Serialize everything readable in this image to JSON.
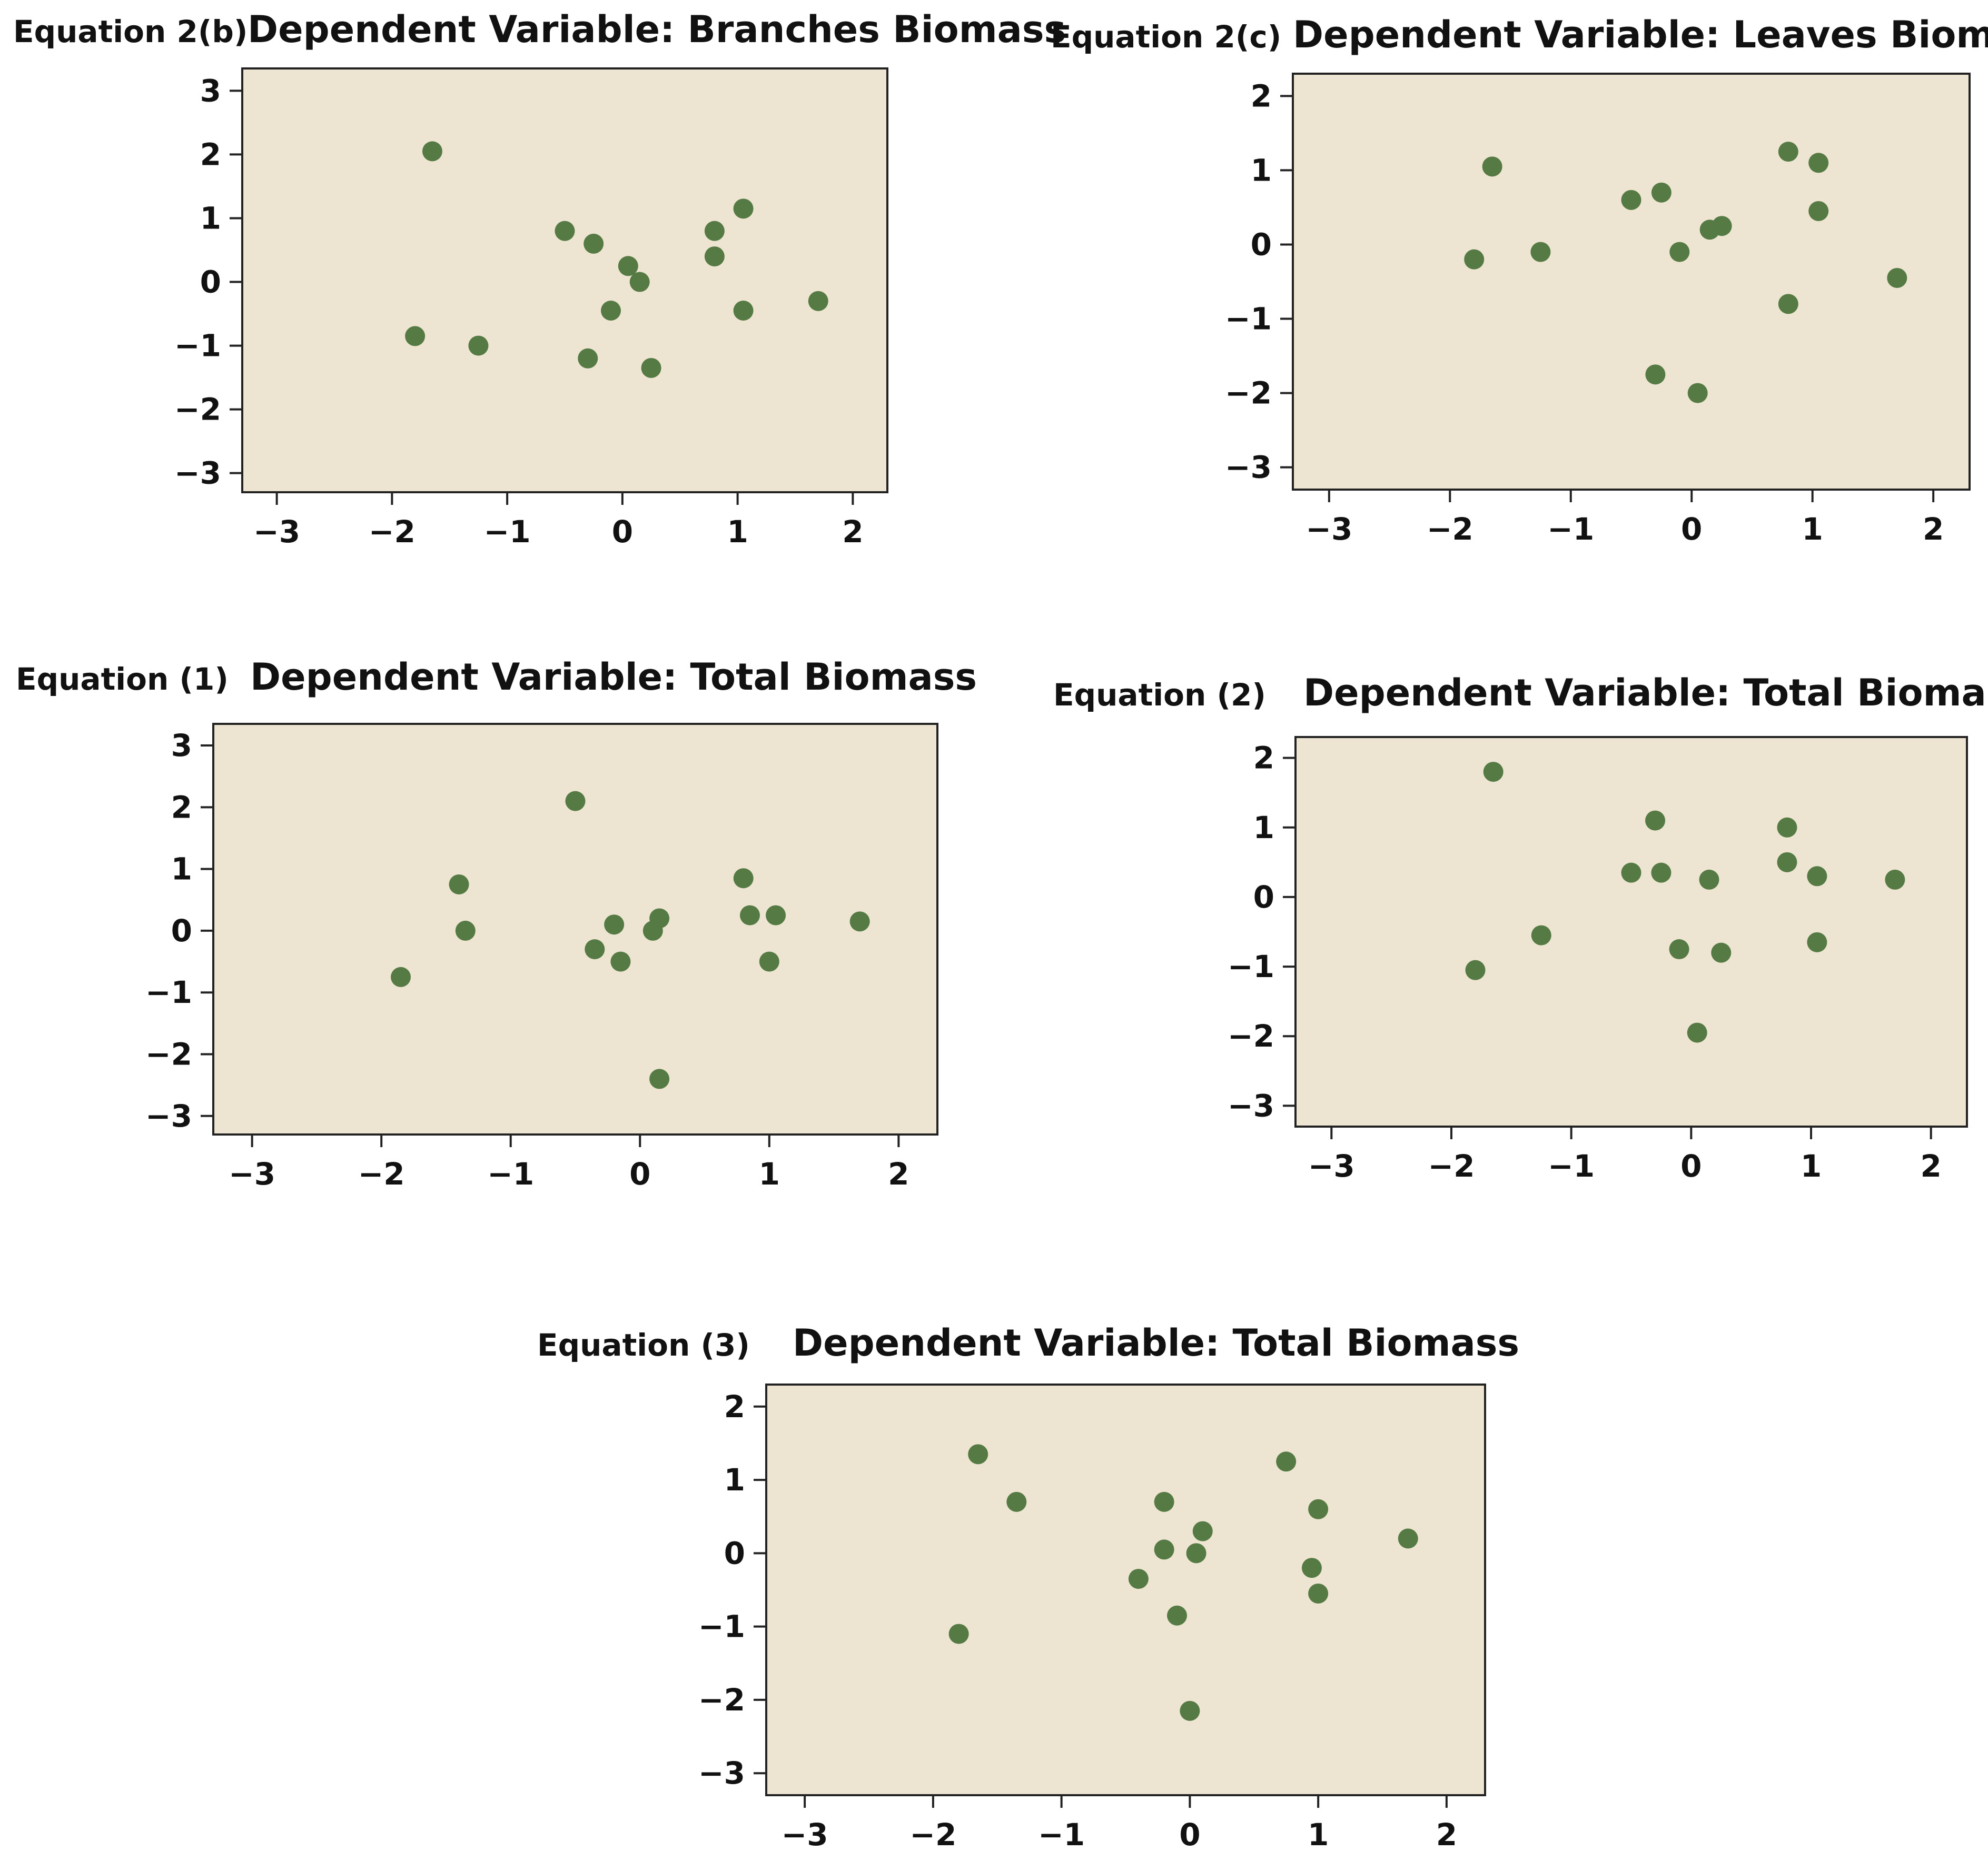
{
  "chart_data": [
    {
      "type": "scatter",
      "equation_label": "Equation 2(b)",
      "title": "Dependent Variable: Branches Biomass",
      "xlabel": "",
      "ylabel": "",
      "xlim": [
        -3.3,
        2.3
      ],
      "ylim": [
        -3.3,
        3.35
      ],
      "xticks": [
        -3,
        -2,
        -1,
        0,
        1,
        2
      ],
      "yticks": [
        -3,
        -2,
        -1,
        0,
        1,
        2,
        3
      ],
      "x": [
        -1.65,
        -1.8,
        -1.25,
        -0.5,
        -0.25,
        -0.3,
        0.05,
        0.15,
        -0.1,
        0.25,
        0.8,
        0.8,
        1.05,
        1.05,
        1.7
      ],
      "y": [
        2.05,
        -0.85,
        -1.0,
        0.8,
        0.6,
        -1.2,
        0.25,
        0.0,
        -0.45,
        -1.35,
        0.8,
        0.4,
        1.15,
        -0.45,
        -0.3
      ]
    },
    {
      "type": "scatter",
      "equation_label": "Equation 2(c)",
      "title": "Dependent Variable: Leaves Biomass",
      "xlabel": "",
      "ylabel": "",
      "xlim": [
        -3.3,
        2.3
      ],
      "ylim": [
        -3.3,
        2.3
      ],
      "xticks": [
        -3,
        -2,
        -1,
        0,
        1,
        2
      ],
      "yticks": [
        -3,
        -2,
        -1,
        0,
        1,
        2
      ],
      "x": [
        -1.65,
        -1.8,
        -1.25,
        -0.5,
        -0.25,
        -0.1,
        0.15,
        0.25,
        -0.3,
        0.05,
        0.8,
        1.05,
        1.05,
        0.8,
        1.7
      ],
      "y": [
        1.05,
        -0.2,
        -0.1,
        0.6,
        0.7,
        -0.1,
        0.2,
        0.25,
        -1.75,
        -2.0,
        1.25,
        1.1,
        0.45,
        -0.8,
        -0.45
      ]
    },
    {
      "type": "scatter",
      "equation_label": "Equation (1)",
      "title": "Dependent Variable: Total Biomass",
      "xlabel": "",
      "ylabel": "",
      "xlim": [
        -3.3,
        2.3
      ],
      "ylim": [
        -3.3,
        3.35
      ],
      "xticks": [
        -3,
        -2,
        -1,
        0,
        1,
        2
      ],
      "yticks": [
        -3,
        -2,
        -1,
        0,
        1,
        2,
        3
      ],
      "x": [
        -1.85,
        -1.4,
        -1.35,
        -0.5,
        -0.35,
        -0.2,
        -0.15,
        0.1,
        0.15,
        0.15,
        0.8,
        0.85,
        1.05,
        1.0,
        1.7
      ],
      "y": [
        -0.75,
        0.75,
        0.0,
        2.1,
        -0.3,
        0.1,
        -0.5,
        0.0,
        0.2,
        -2.4,
        0.85,
        0.25,
        0.25,
        -0.5,
        0.15
      ]
    },
    {
      "type": "scatter",
      "equation_label": "Equation (2)",
      "title": "Dependent Variable: Total Biomass",
      "xlabel": "",
      "ylabel": "",
      "xlim": [
        -3.3,
        2.3
      ],
      "ylim": [
        -3.3,
        2.3
      ],
      "xticks": [
        -3,
        -2,
        -1,
        0,
        1,
        2
      ],
      "yticks": [
        -3,
        -2,
        -1,
        0,
        1,
        2
      ],
      "x": [
        -1.65,
        -1.8,
        -1.25,
        -0.5,
        -0.3,
        -0.25,
        -0.1,
        0.15,
        0.25,
        0.05,
        0.8,
        0.8,
        1.05,
        1.05,
        1.7
      ],
      "y": [
        1.8,
        -1.05,
        -0.55,
        0.35,
        1.1,
        0.35,
        -0.75,
        0.25,
        -0.8,
        -1.95,
        1.0,
        0.5,
        0.3,
        -0.65,
        0.25
      ]
    },
    {
      "type": "scatter",
      "equation_label": "Equation (3)",
      "title": "Dependent Variable: Total Biomass",
      "xlabel": "",
      "ylabel": "",
      "xlim": [
        -3.3,
        2.3
      ],
      "ylim": [
        -3.3,
        2.3
      ],
      "xticks": [
        -3,
        -2,
        -1,
        0,
        1,
        2
      ],
      "yticks": [
        -3,
        -2,
        -1,
        0,
        1,
        2
      ],
      "x": [
        -1.65,
        -1.35,
        -1.8,
        -0.2,
        -0.2,
        -0.4,
        0.1,
        0.05,
        -0.1,
        0.0,
        0.75,
        1.0,
        0.95,
        1.0,
        1.7
      ],
      "y": [
        1.35,
        0.7,
        -1.1,
        0.7,
        0.05,
        -0.35,
        0.3,
        0.0,
        -0.85,
        -2.15,
        1.25,
        0.6,
        -0.2,
        -0.55,
        0.2
      ]
    }
  ],
  "colors": {
    "plot_background": "#ede5d1",
    "point": "#557a44",
    "axis": "#222222"
  }
}
